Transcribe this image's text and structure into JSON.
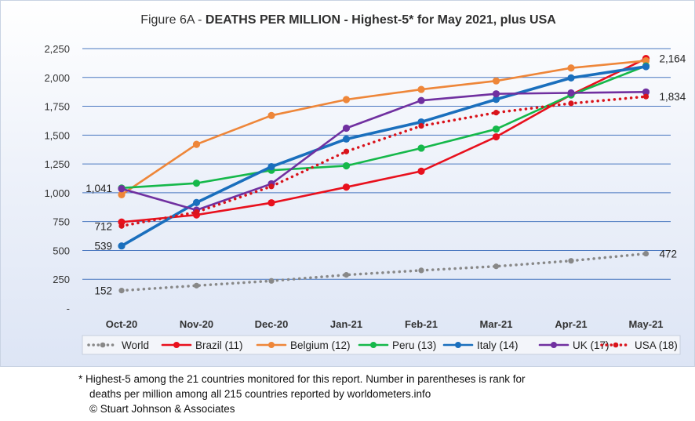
{
  "chart_data": {
    "type": "line",
    "title_prefix": "Figure 6A - ",
    "title_main": "DEATHS PER MILLION - Highest-5* for May 2021, plus USA",
    "categories": [
      "Oct-20",
      "Nov-20",
      "Dec-20",
      "Jan-21",
      "Feb-21",
      "Mar-21",
      "Apr-21",
      "May-21"
    ],
    "ylim": [
      0,
      2250
    ],
    "yticks": [
      0,
      250,
      500,
      750,
      1000,
      1250,
      1500,
      1750,
      2000,
      2250
    ],
    "ytick_labels": [
      "-",
      "250",
      "500",
      "750",
      "1,000",
      "1,250",
      "1,500",
      "1,750",
      "2,000",
      "2,250"
    ],
    "grid": true,
    "legend_position": "bottom",
    "series": [
      {
        "name": "World",
        "color": "#888888",
        "style": "dotted",
        "values": [
          152,
          195,
          236,
          288,
          327,
          362,
          410,
          472
        ]
      },
      {
        "name": "Brazil (11)",
        "color": "#e8101d",
        "style": "solid",
        "values": [
          746,
          808,
          913,
          1049,
          1187,
          1485,
          1850,
          2164
        ]
      },
      {
        "name": "Belgium (12)",
        "color": "#ee8639",
        "style": "solid",
        "values": [
          983,
          1420,
          1670,
          1808,
          1896,
          1970,
          2082,
          2145
        ]
      },
      {
        "name": "Peru (13)",
        "color": "#15b84a",
        "style": "solid",
        "values": [
          1041,
          1083,
          1195,
          1234,
          1387,
          1552,
          1848,
          2100
        ]
      },
      {
        "name": "Italy (14)",
        "color": "#1a6fbd",
        "style": "solid",
        "values": [
          539,
          915,
          1226,
          1466,
          1614,
          1810,
          1996,
          2094
        ]
      },
      {
        "name": "UK (17)",
        "color": "#7030a0",
        "style": "solid",
        "values": [
          1035,
          850,
          1078,
          1560,
          1800,
          1858,
          1866,
          1874
        ]
      },
      {
        "name": "USA (18)",
        "color": "#d9131b",
        "style": "dotted",
        "values": [
          712,
          832,
          1055,
          1358,
          1580,
          1695,
          1775,
          1834
        ]
      }
    ],
    "annotations": [
      {
        "text": "152",
        "x": "Oct-20",
        "y": 152,
        "side": "left"
      },
      {
        "text": "539",
        "x": "Oct-20",
        "y": 539,
        "side": "left"
      },
      {
        "text": "712",
        "x": "Oct-20",
        "y": 712,
        "side": "left"
      },
      {
        "text": "1,041",
        "x": "Oct-20",
        "y": 1041,
        "side": "left"
      },
      {
        "text": "472",
        "x": "May-21",
        "y": 472,
        "side": "right"
      },
      {
        "text": "1,834",
        "x": "May-21",
        "y": 1834,
        "side": "right"
      },
      {
        "text": "2,164",
        "x": "May-21",
        "y": 2164,
        "side": "right"
      }
    ]
  },
  "footnote": {
    "line1": "* Highest-5 among the 21 countries monitored for this report. Number in parentheses is rank for",
    "line2": "deaths per million among all 215 countries reported by worldometers.info",
    "line3": "© Stuart Johnson & Associates"
  }
}
